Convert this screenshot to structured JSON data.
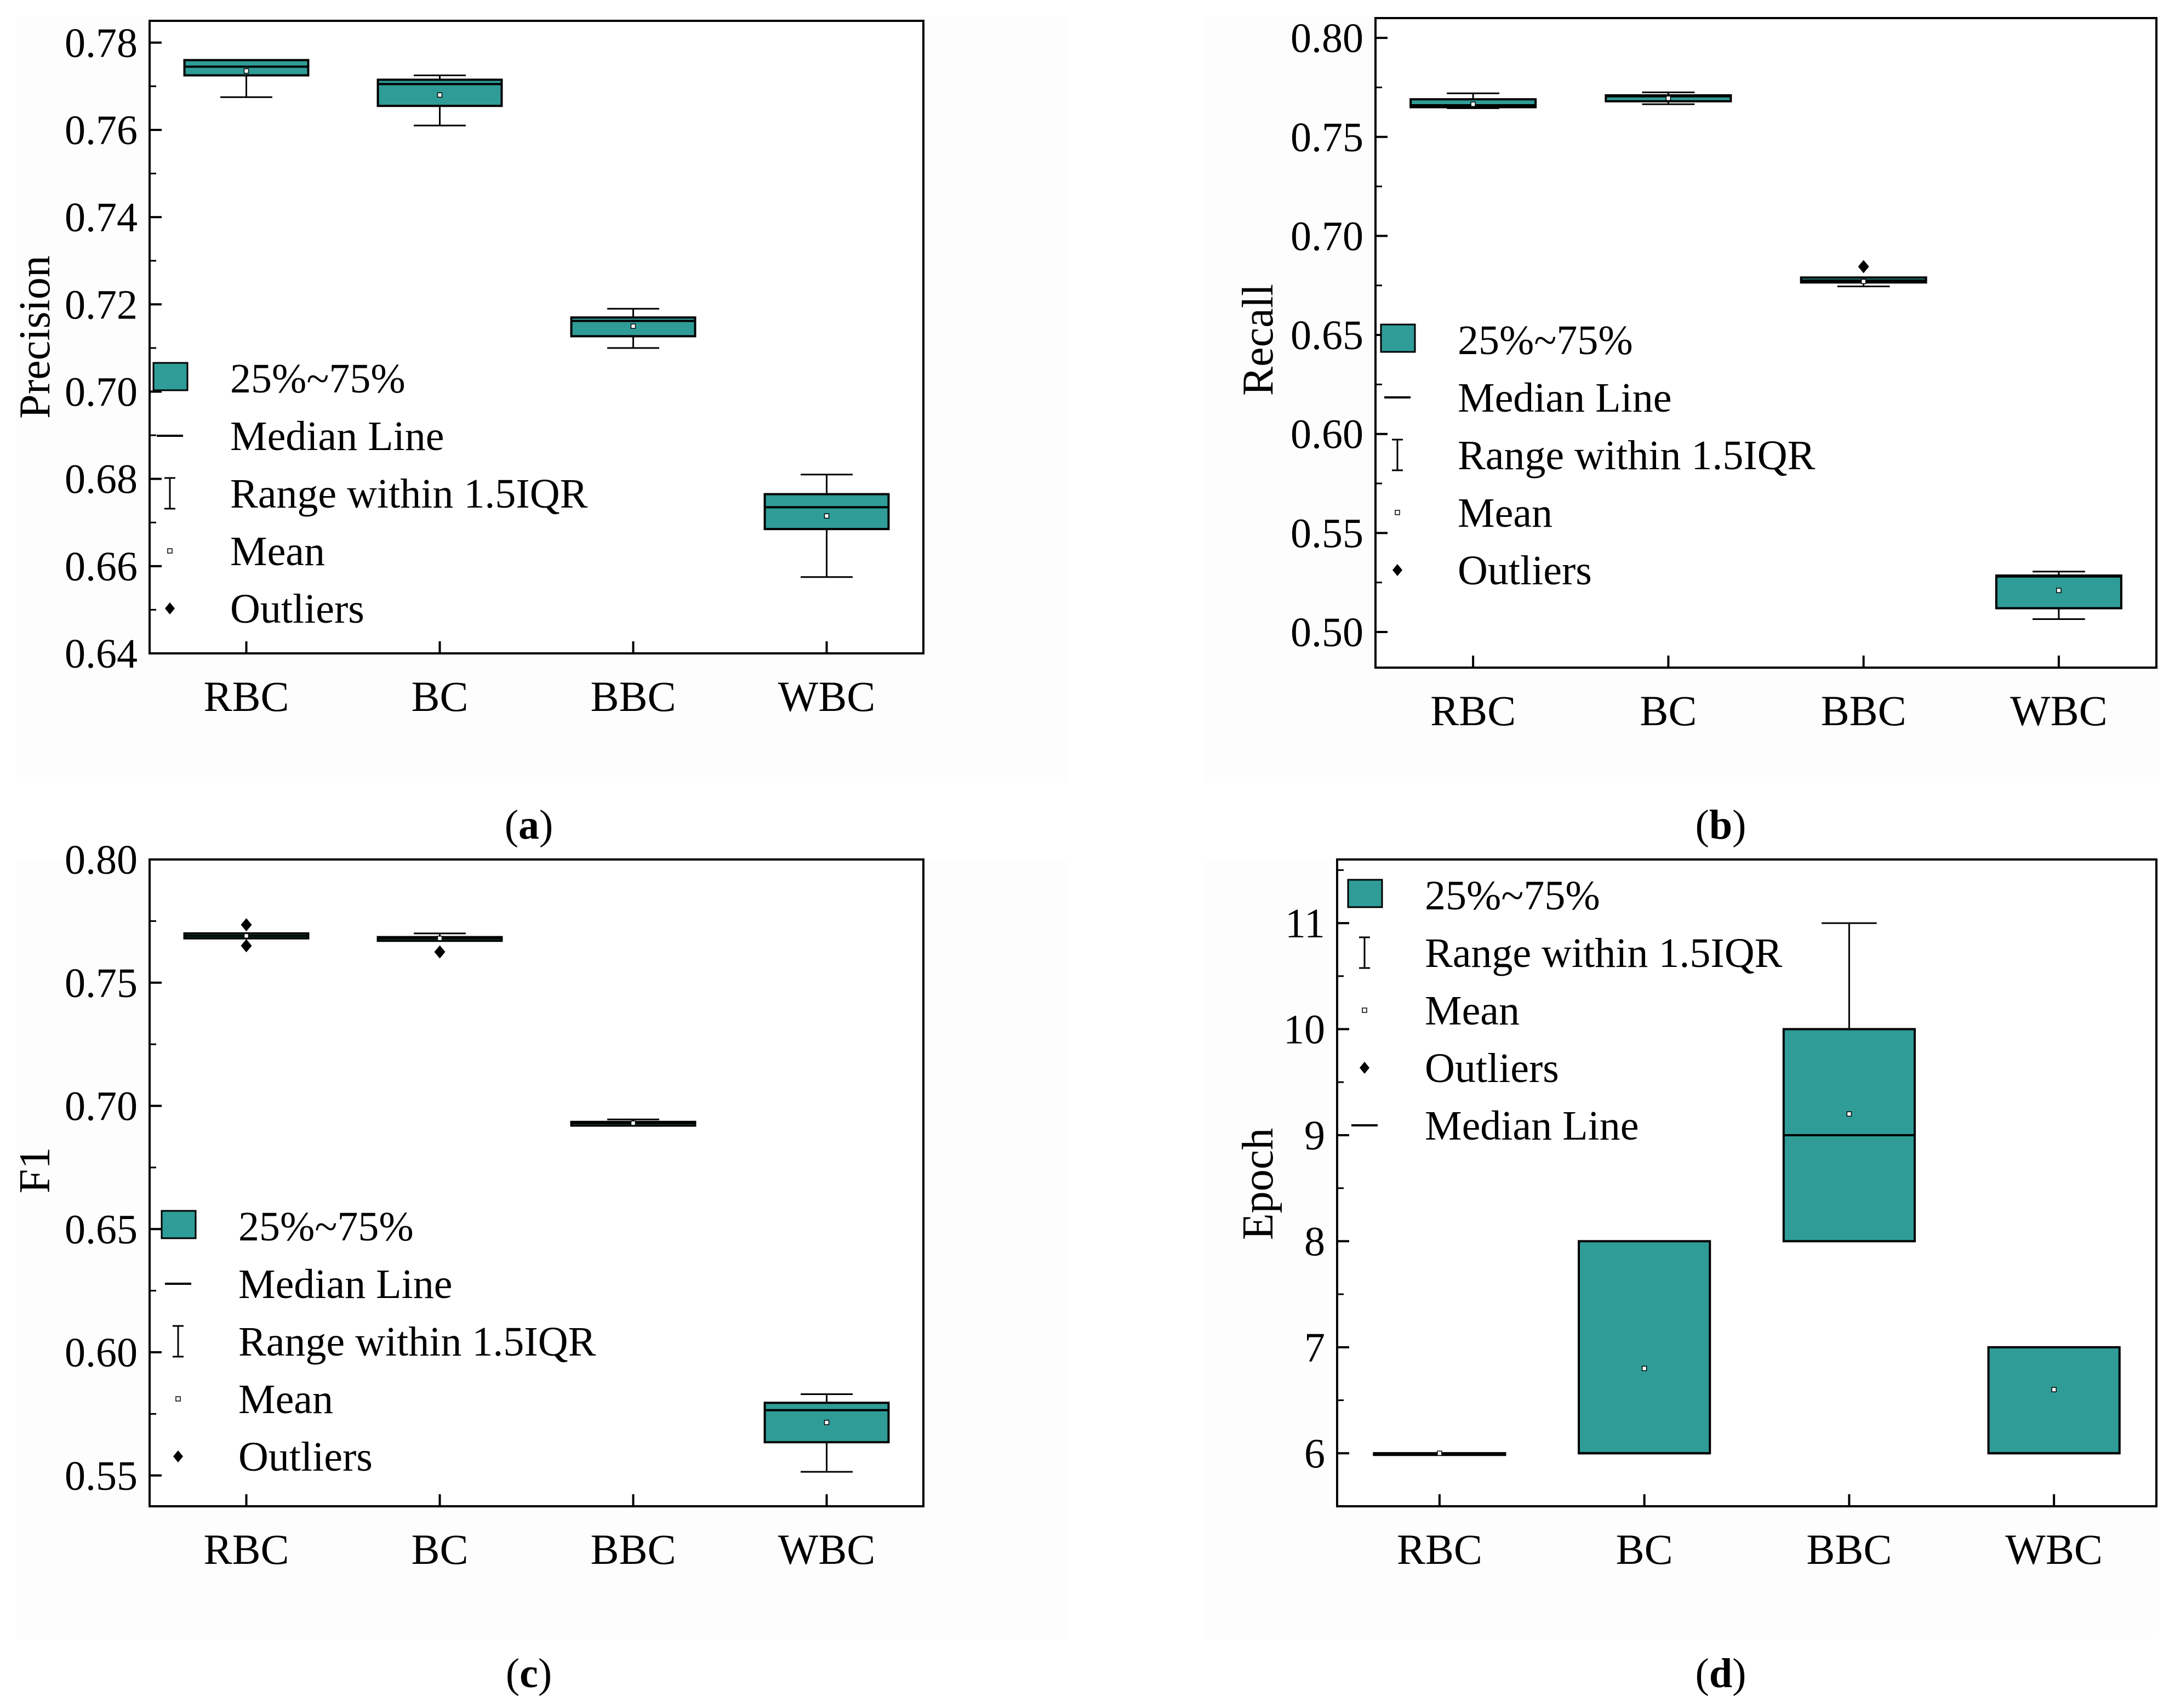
{
  "colors": {
    "box_fill": "#2f9c97",
    "stroke": "#000000",
    "panel_bg": "#ffffff",
    "outer_bg": "#fdfdfd"
  },
  "chart_data": [
    {
      "id": "a",
      "type": "box",
      "caption": "a",
      "ylabel": "Precision",
      "xlabel": "",
      "categories": [
        "RBC",
        "BC",
        "BBC",
        "WBC"
      ],
      "ylim": [
        0.64,
        0.785
      ],
      "ytick_values": [
        0.64,
        0.66,
        0.68,
        0.7,
        0.72,
        0.74,
        0.76,
        0.78
      ],
      "ytick_labels": [
        "0.64",
        "0.66",
        "0.68",
        "0.70",
        "0.72",
        "0.74",
        "0.76",
        "0.78"
      ],
      "boxes": [
        {
          "category": "RBC",
          "whisker_low": 0.7675,
          "q1": 0.7725,
          "median": 0.7745,
          "q3": 0.776,
          "whisker_high": 0.776,
          "mean": 0.7735,
          "outliers": []
        },
        {
          "category": "BC",
          "whisker_low": 0.761,
          "q1": 0.7655,
          "median": 0.7705,
          "q3": 0.7715,
          "whisker_high": 0.7725,
          "mean": 0.768,
          "outliers": []
        },
        {
          "category": "BBC",
          "whisker_low": 0.71,
          "q1": 0.7127,
          "median": 0.7162,
          "q3": 0.717,
          "whisker_high": 0.719,
          "mean": 0.715,
          "outliers": []
        },
        {
          "category": "WBC",
          "whisker_low": 0.6575,
          "q1": 0.6685,
          "median": 0.6735,
          "q3": 0.6765,
          "whisker_high": 0.681,
          "mean": 0.6715,
          "outliers": []
        }
      ],
      "legend": [
        {
          "type": "box",
          "label": "25%~75%"
        },
        {
          "type": "median",
          "label": "Median Line"
        },
        {
          "type": "range",
          "label": "Range within 1.5IQR"
        },
        {
          "type": "mean",
          "label": "Mean"
        },
        {
          "type": "outlier",
          "label": "Outliers"
        }
      ]
    },
    {
      "id": "b",
      "type": "box",
      "caption": "b",
      "ylabel": "Recall",
      "xlabel": "",
      "categories": [
        "RBC",
        "BC",
        "BBC",
        "WBC"
      ],
      "ylim": [
        0.482,
        0.81
      ],
      "ytick_values": [
        0.5,
        0.55,
        0.6,
        0.65,
        0.7,
        0.75,
        0.8
      ],
      "ytick_labels": [
        "0.50",
        "0.55",
        "0.60",
        "0.65",
        "0.70",
        "0.75",
        "0.80"
      ],
      "boxes": [
        {
          "category": "RBC",
          "whisker_low": 0.7645,
          "q1": 0.765,
          "median": 0.766,
          "q3": 0.769,
          "whisker_high": 0.772,
          "mean": 0.7665,
          "outliers": []
        },
        {
          "category": "BC",
          "whisker_low": 0.7665,
          "q1": 0.768,
          "median": 0.7705,
          "q3": 0.771,
          "whisker_high": 0.7725,
          "mean": 0.7695,
          "outliers": []
        },
        {
          "category": "BBC",
          "whisker_low": 0.6745,
          "q1": 0.6765,
          "median": 0.6775,
          "q3": 0.679,
          "whisker_high": 0.679,
          "mean": 0.677,
          "outliers": [
            0.6845
          ]
        },
        {
          "category": "WBC",
          "whisker_low": 0.5065,
          "q1": 0.512,
          "median": 0.528,
          "q3": 0.5285,
          "whisker_high": 0.5305,
          "mean": 0.521,
          "outliers": []
        }
      ],
      "legend": [
        {
          "type": "box",
          "label": "25%~75%"
        },
        {
          "type": "median",
          "label": "Median Line"
        },
        {
          "type": "range",
          "label": "Range within 1.5IQR"
        },
        {
          "type": "mean",
          "label": "Mean"
        },
        {
          "type": "outlier",
          "label": "Outliers"
        }
      ]
    },
    {
      "id": "c",
      "type": "box",
      "caption": "c",
      "ylabel": "F1",
      "xlabel": "",
      "categories": [
        "RBC",
        "BC",
        "BBC",
        "WBC"
      ],
      "ylim": [
        0.5375,
        0.8
      ],
      "ytick_values": [
        0.55,
        0.6,
        0.65,
        0.7,
        0.75,
        0.8
      ],
      "ytick_labels": [
        "0.55",
        "0.60",
        "0.65",
        "0.70",
        "0.75",
        "0.80"
      ],
      "boxes": [
        {
          "category": "RBC",
          "whisker_low": 0.768,
          "q1": 0.768,
          "median": 0.769,
          "q3": 0.77,
          "whisker_high": 0.77,
          "mean": 0.769,
          "outliers": [
            0.7735,
            0.765
          ]
        },
        {
          "category": "BC",
          "whisker_low": 0.767,
          "q1": 0.767,
          "median": 0.768,
          "q3": 0.7685,
          "whisker_high": 0.77,
          "mean": 0.768,
          "outliers": [
            0.7625
          ]
        },
        {
          "category": "BBC",
          "whisker_low": 0.692,
          "q1": 0.692,
          "median": 0.693,
          "q3": 0.6935,
          "whisker_high": 0.6945,
          "mean": 0.693,
          "outliers": []
        },
        {
          "category": "WBC",
          "whisker_low": 0.5515,
          "q1": 0.5635,
          "median": 0.5765,
          "q3": 0.5795,
          "whisker_high": 0.583,
          "mean": 0.5715,
          "outliers": []
        }
      ],
      "legend": [
        {
          "type": "box",
          "label": "25%~75%"
        },
        {
          "type": "median",
          "label": "Median Line"
        },
        {
          "type": "range",
          "label": "Range within 1.5IQR"
        },
        {
          "type": "mean",
          "label": "Mean"
        },
        {
          "type": "outlier",
          "label": "Outliers"
        }
      ]
    },
    {
      "id": "d",
      "type": "box",
      "caption": "d",
      "ylabel": "Epoch",
      "xlabel": "",
      "categories": [
        "RBC",
        "BC",
        "BBC",
        "WBC"
      ],
      "ylim": [
        5.5,
        11.6
      ],
      "ytick_values": [
        6,
        7,
        8,
        9,
        10,
        11
      ],
      "ytick_labels": [
        "6",
        "7",
        "8",
        "9",
        "10",
        "11"
      ],
      "boxes": [
        {
          "category": "RBC",
          "whisker_low": 6,
          "q1": 6,
          "median": 6,
          "q3": 6,
          "whisker_high": 6,
          "mean": 6,
          "outliers": []
        },
        {
          "category": "BC",
          "whisker_low": 6,
          "q1": 6,
          "median": 6,
          "q3": 8,
          "whisker_high": 8,
          "mean": 6.8,
          "outliers": []
        },
        {
          "category": "BBC",
          "whisker_low": 8,
          "q1": 8,
          "median": 9,
          "q3": 10,
          "whisker_high": 11,
          "mean": 9.2,
          "outliers": []
        },
        {
          "category": "WBC",
          "whisker_low": 6,
          "q1": 6,
          "median": 6,
          "q3": 7,
          "whisker_high": 7,
          "mean": 6.6,
          "outliers": []
        }
      ],
      "legend": [
        {
          "type": "box",
          "label": "25%~75%"
        },
        {
          "type": "range",
          "label": "Range within 1.5IQR"
        },
        {
          "type": "mean",
          "label": "Mean"
        },
        {
          "type": "outlier",
          "label": "Outliers"
        },
        {
          "type": "median",
          "label": "Median Line"
        }
      ]
    }
  ]
}
